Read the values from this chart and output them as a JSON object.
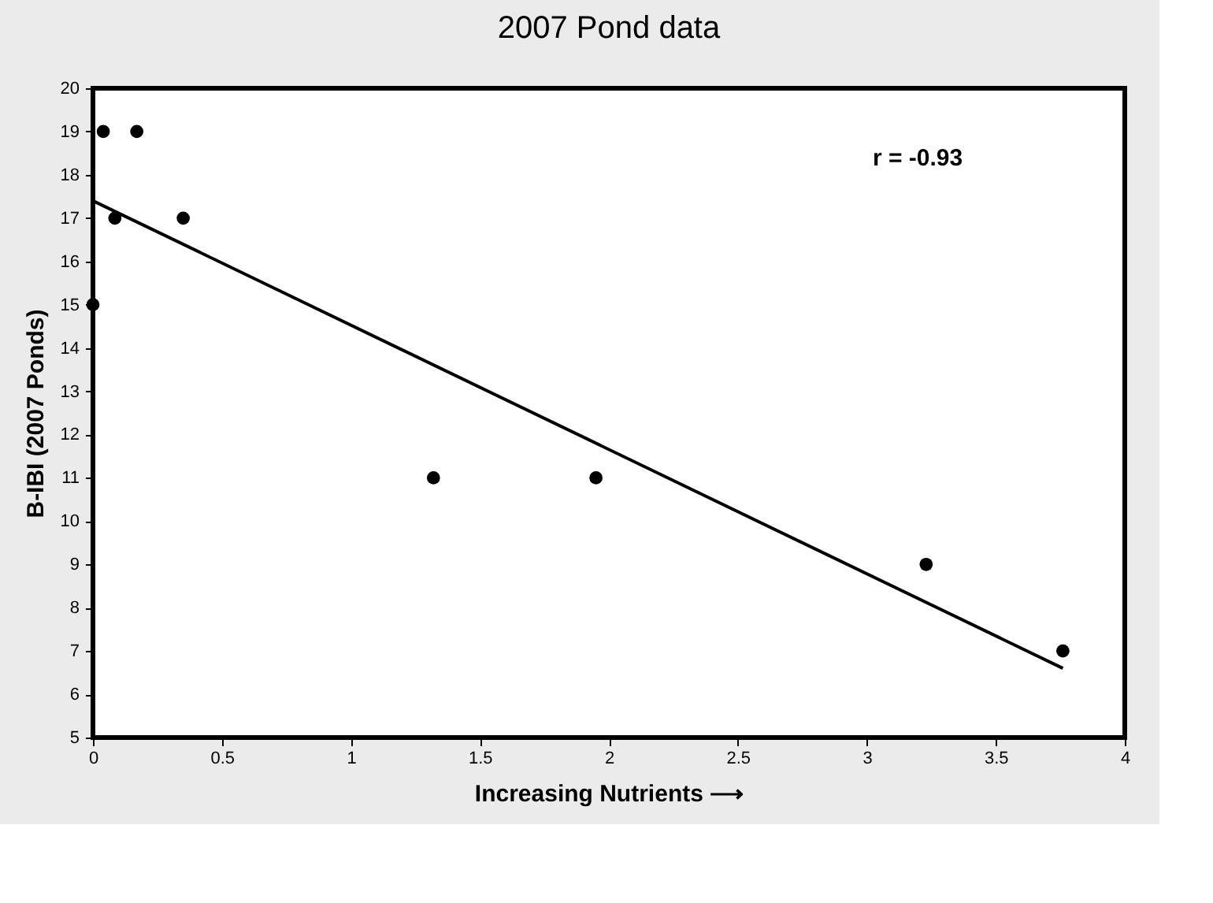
{
  "chart_data": {
    "type": "scatter",
    "title": "2007 Pond data",
    "xlabel": "Increasing Nutrients ⟶",
    "ylabel": "B-IBI (2007 Ponds)",
    "series": [
      {
        "type": "scatter",
        "color": "#000000",
        "marker": "circle",
        "x": [
          0,
          0.04,
          0.085,
          0.17,
          0.35,
          1.32,
          1.95,
          3.23,
          3.76
        ],
        "values": [
          15,
          19,
          17,
          19,
          17,
          11,
          11,
          9,
          7
        ]
      },
      {
        "type": "line",
        "color": "#000000",
        "line_style": "solid",
        "marker": "none",
        "x": [
          0,
          3.76
        ],
        "values": [
          17.4,
          6.6
        ]
      }
    ],
    "annotations": [
      "r = -0.93"
    ],
    "xlim": [
      0,
      4
    ],
    "xticks": [
      0,
      0.5,
      1,
      1.5,
      2,
      2.5,
      3,
      3.5,
      4
    ],
    "ylim": [
      5,
      20
    ],
    "yticks": [
      5,
      6,
      7,
      8,
      9,
      10,
      11,
      12,
      13,
      14,
      15,
      16,
      17,
      18,
      19,
      20
    ],
    "grid": false
  }
}
